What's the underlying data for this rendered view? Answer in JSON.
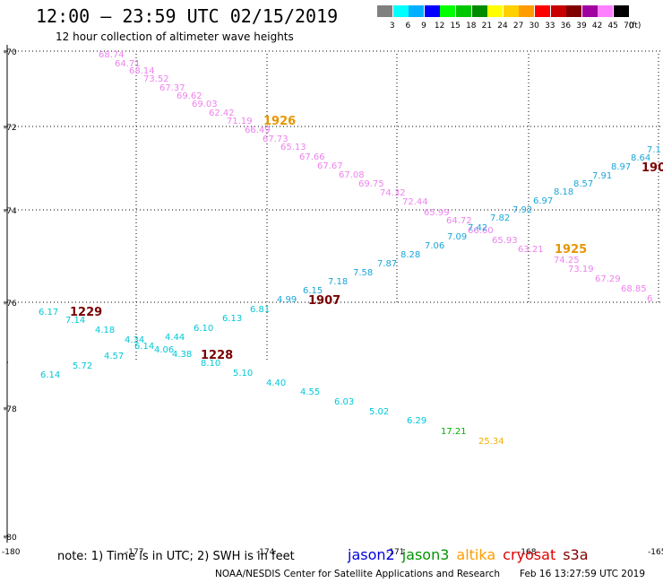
{
  "title": "12:00 – 23:59 UTC 02/15/2019",
  "subtitle": "12 hour collection of altimeter wave heights",
  "color_scale": {
    "unit_label": "(ft)",
    "bins": [
      {
        "label": "3",
        "color": "#808080"
      },
      {
        "label": "6",
        "color": "#00ffff"
      },
      {
        "label": "9",
        "color": "#00b0ff"
      },
      {
        "label": "12",
        "color": "#0000ff"
      },
      {
        "label": "15",
        "color": "#00ff00"
      },
      {
        "label": "18",
        "color": "#00c800"
      },
      {
        "label": "21",
        "color": "#008c00"
      },
      {
        "label": "24",
        "color": "#ffff00"
      },
      {
        "label": "27",
        "color": "#ffd000"
      },
      {
        "label": "30",
        "color": "#ff9c00"
      },
      {
        "label": "33",
        "color": "#ff0000"
      },
      {
        "label": "36",
        "color": "#c80000"
      },
      {
        "label": "39",
        "color": "#800000"
      },
      {
        "label": "42",
        "color": "#a000a0"
      },
      {
        "label": "45",
        "color": "#ff80ff"
      },
      {
        "label": "70",
        "color": "#000000"
      }
    ]
  },
  "axes": {
    "lat_ticks": [
      {
        "label": "-70",
        "value": -70
      },
      {
        "label": "-72",
        "value": -72
      },
      {
        "label": "-74",
        "value": -74
      },
      {
        "label": "-76",
        "value": -76
      },
      {
        "label": "-78",
        "value": -78
      },
      {
        "label": "-80",
        "value": -80
      }
    ],
    "lon_ticks": [
      {
        "label": "-180",
        "value": -180
      },
      {
        "label": "-177",
        "value": -177
      },
      {
        "label": "-174",
        "value": -174
      },
      {
        "label": "-171",
        "value": -171
      },
      {
        "label": "-168",
        "value": -168
      },
      {
        "label": "-165",
        "value": -165
      }
    ]
  },
  "passes": [
    {
      "time": "1926",
      "color": "#e69500"
    },
    {
      "time": "1925",
      "color": "#e69500"
    },
    {
      "time": "1907",
      "color": "#7a0000"
    },
    {
      "time": "1229",
      "color": "#7a0000"
    },
    {
      "time": "1228",
      "color": "#7a0000"
    },
    {
      "time": "190",
      "color": "#7a0000"
    }
  ],
  "readings": {
    "pink": [
      "68.74",
      "64.71",
      "68.14",
      "73.52",
      "67.37",
      "69.62",
      "69.03",
      "62.42",
      "71.19",
      "66.49",
      "67.73",
      "65.13",
      "67.66",
      "67.67",
      "67.08",
      "69.75",
      "74.32",
      "72.44",
      "65.99",
      "64.72",
      "66.60",
      "65.93",
      "63.21",
      "74.25",
      "73.19",
      "67.29",
      "68.85",
      "6"
    ],
    "blue": [
      "4.99",
      "6.15",
      "7.18",
      "7.58",
      "7.87",
      "8.28",
      "7.06",
      "7.09",
      "7.42",
      "7.82",
      "7.92",
      "6.97",
      "8.18",
      "8.57",
      "7.91",
      "8.97",
      "8.64",
      "7.1"
    ],
    "cyan": [
      "6.17",
      "7.14",
      "4.18",
      "4.34",
      "6.14",
      "4.06",
      "4.38",
      "4.44",
      "6.10",
      "6.13",
      "6.81",
      "6.14",
      "5.72",
      "4.57",
      "8.10",
      "5.10",
      "4.40",
      "4.55",
      "6.03",
      "5.02",
      "6.29"
    ],
    "green": [
      "17.21"
    ],
    "yellow": [
      "25.34"
    ]
  },
  "note": "note: 1) Time is in UTC; 2) SWH is in feet",
  "satellites": [
    {
      "name": "jason2",
      "color": "#0000e0"
    },
    {
      "name": "jason3",
      "color": "#009600"
    },
    {
      "name": "altika",
      "color": "#ff9c00"
    },
    {
      "name": "cryosat",
      "color": "#e00000"
    },
    {
      "name": "s3a",
      "color": "#800000"
    }
  ],
  "credit": "NOAA/NESDIS Center for Satellite Applications and Research",
  "timestamp": "Feb 16 13:27:59 UTC 2019"
}
